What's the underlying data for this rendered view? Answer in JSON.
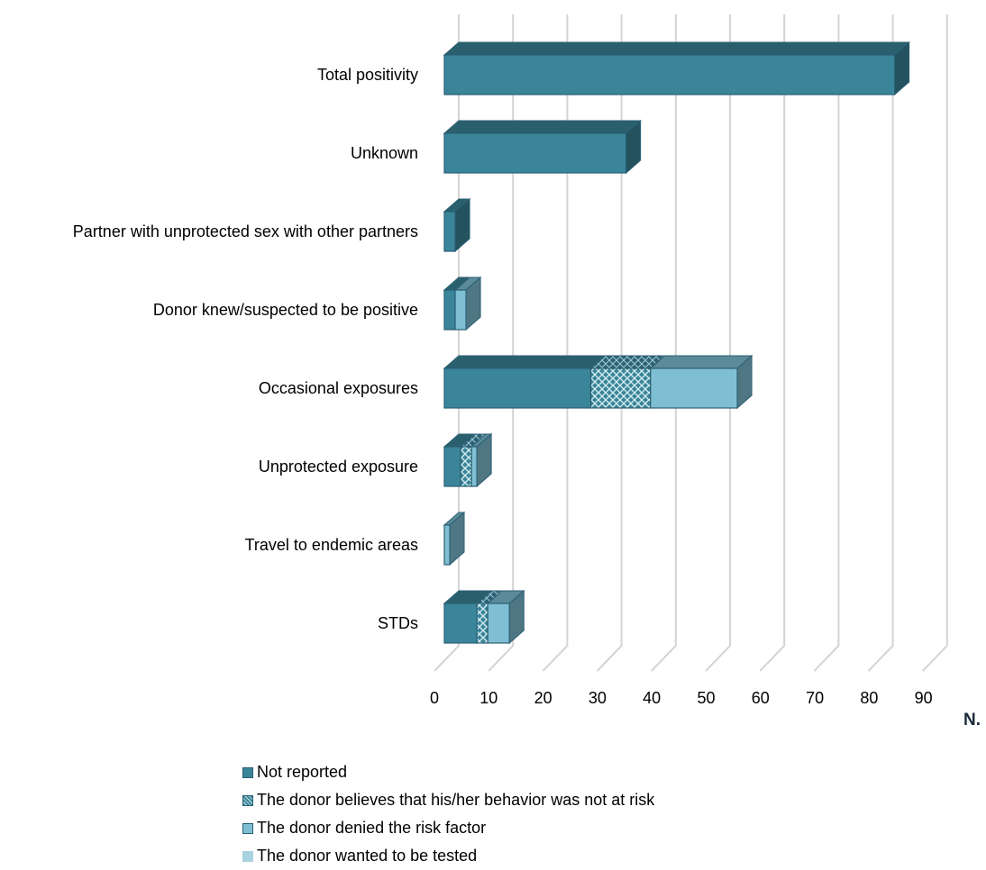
{
  "chart_data": {
    "type": "bar",
    "orientation": "horizontal",
    "stacked": true,
    "style": "3d",
    "categories": [
      "Total positivity",
      "Unknown",
      "Partner with unprotected sex with other partners",
      "Donor knew/suspected to be positive",
      "Occasional exposures",
      "Unprotected exposure",
      "Travel to endemic areas",
      "STDs"
    ],
    "series": [
      {
        "name": "Not reported",
        "color": "#3a8599",
        "pattern": "solid",
        "values": [
          83,
          33.5,
          2,
          2,
          27,
          3,
          0,
          6
        ]
      },
      {
        "name": "The donor believes that his/her behavior was not at risk",
        "color": "#3a8599",
        "pattern": "crosshatch",
        "values": [
          0,
          0,
          0,
          0,
          11,
          2,
          0,
          2
        ]
      },
      {
        "name": "The donor denied the risk factor",
        "color": "#7fbfd3",
        "pattern": "solid",
        "values": [
          0,
          0,
          0,
          2,
          16,
          1,
          1,
          4
        ]
      },
      {
        "name": "The donor wanted to be tested",
        "color": "#a9d3df",
        "pattern": "solid",
        "values": [
          0,
          0,
          0,
          0,
          0,
          0,
          0,
          0
        ]
      }
    ],
    "x_ticks": [
      "0",
      "10",
      "20",
      "30",
      "40",
      "50",
      "60",
      "70",
      "80",
      "90"
    ],
    "xlim": [
      0,
      90
    ],
    "xlabel": "N.",
    "grid": true,
    "legend_position": "bottom"
  }
}
